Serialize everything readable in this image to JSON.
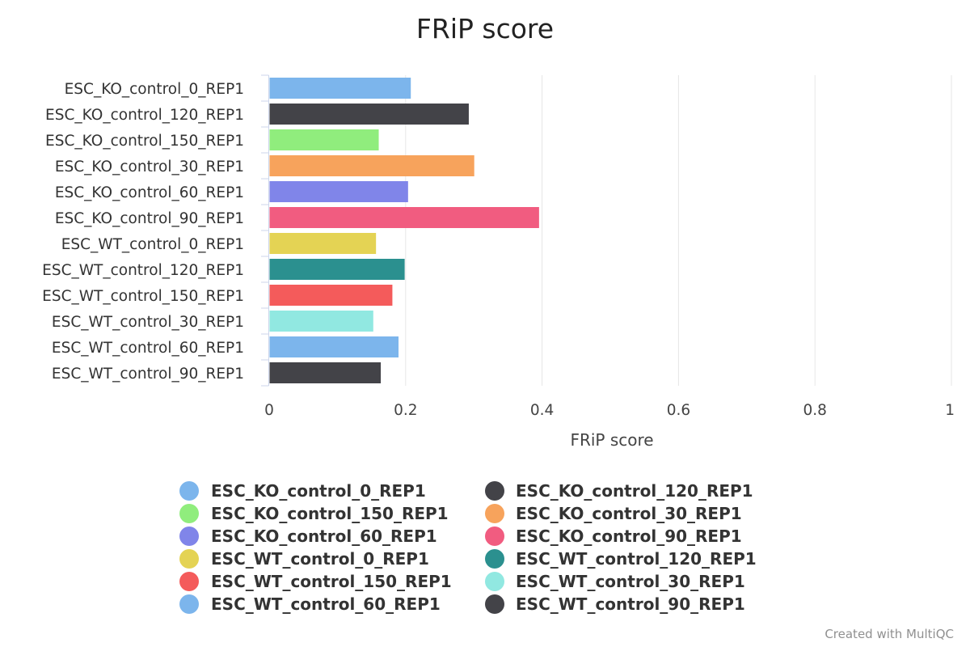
{
  "chart_data": {
    "type": "bar",
    "orientation": "horizontal",
    "title": "FRiP score",
    "xlabel": "FRiP score",
    "ylabel": "",
    "xlim": [
      0,
      1
    ],
    "ticks": [
      "0",
      "0.2",
      "0.4",
      "0.6",
      "0.8",
      "1"
    ],
    "tick_values": [
      0,
      0.2,
      0.4,
      0.6,
      0.8,
      1
    ],
    "grid": true,
    "legend_position": "bottom",
    "categories": [
      "ESC_KO_control_0_REP1",
      "ESC_KO_control_120_REP1",
      "ESC_KO_control_150_REP1",
      "ESC_KO_control_30_REP1",
      "ESC_KO_control_60_REP1",
      "ESC_KO_control_90_REP1",
      "ESC_WT_control_0_REP1",
      "ESC_WT_control_120_REP1",
      "ESC_WT_control_150_REP1",
      "ESC_WT_control_30_REP1",
      "ESC_WT_control_60_REP1",
      "ESC_WT_control_90_REP1"
    ],
    "values": [
      0.207,
      0.292,
      0.16,
      0.3,
      0.203,
      0.395,
      0.156,
      0.198,
      0.18,
      0.152,
      0.189,
      0.163
    ],
    "colors": [
      "#7cb5ec",
      "#434348",
      "#90ed7d",
      "#f7a35c",
      "#8085e9",
      "#f15c80",
      "#e4d354",
      "#2b908f",
      "#f45b5b",
      "#91e8e1",
      "#7cb5ec",
      "#434348"
    ]
  },
  "credit": "Created with MultiQC"
}
